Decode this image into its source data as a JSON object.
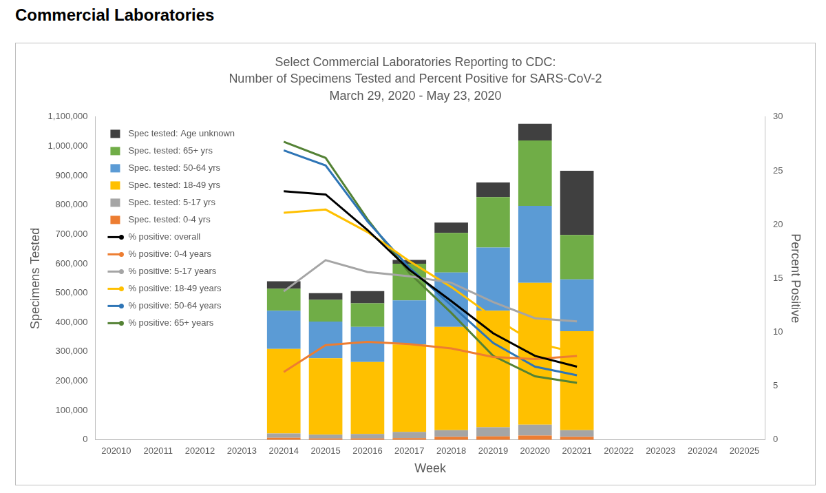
{
  "heading": "Commercial Laboratories",
  "chart_data": {
    "type": "bar",
    "title": [
      "Select Commercial Laboratories Reporting to CDC:",
      "Number of Specimens Tested and Percent Positive for SARS-CoV-2",
      "March 29, 2020 - May 23, 2020"
    ],
    "x_label": "Week",
    "y_label": "Specimens Tested",
    "y2_label": "Percent Positive",
    "categories": [
      "202010",
      "202011",
      "202012",
      "202013",
      "202014",
      "202015",
      "202016",
      "202017",
      "202018",
      "202019",
      "202020",
      "202021",
      "202022",
      "202023",
      "202024",
      "202025"
    ],
    "ylim": [
      0,
      1100000
    ],
    "yticks": [
      0,
      {
        "value": 100000,
        "label": "100,000"
      },
      {
        "value": 200000,
        "label": "200,000"
      },
      {
        "value": 300000,
        "label": "300,000"
      },
      {
        "value": 400000,
        "label": "400,000"
      },
      {
        "value": 500000,
        "label": "500,000"
      },
      {
        "value": 600000,
        "label": "600,000"
      },
      {
        "value": 700000,
        "label": "700,000"
      },
      {
        "value": 800000,
        "label": "800,000"
      },
      {
        "value": 900000,
        "label": "900,000"
      },
      {
        "value": 1000000,
        "label": "1,000,000"
      },
      {
        "value": 1100000,
        "label": "1,100,000"
      }
    ],
    "y2lim": [
      0,
      30
    ],
    "y2ticks": [
      0,
      5,
      10,
      15,
      20,
      25,
      30
    ],
    "stacked": true,
    "grid": false,
    "legend": "upper left",
    "series": [
      {
        "name": "Spec. tested: 0-4 yrs",
        "type": "bar",
        "color": "#ed7d31",
        "values": [
          null,
          null,
          null,
          null,
          7000,
          5000,
          5000,
          6000,
          10000,
          12000,
          15000,
          10000,
          null,
          null,
          null,
          null
        ]
      },
      {
        "name": "Spec. tested: 5-17 yrs",
        "type": "bar",
        "color": "#a5a5a5",
        "values": [
          null,
          null,
          null,
          null,
          15000,
          13000,
          15000,
          21000,
          23000,
          31000,
          37000,
          23000,
          null,
          null,
          null,
          null
        ]
      },
      {
        "name": "Spec. tested: 18-49 yrs",
        "type": "bar",
        "color": "#ffc000",
        "values": [
          null,
          null,
          null,
          null,
          288000,
          260000,
          245000,
          298000,
          352000,
          397000,
          483000,
          337000,
          null,
          null,
          null,
          null
        ]
      },
      {
        "name": "Spec. tested: 50-64 yrs",
        "type": "bar",
        "color": "#5b9bd5",
        "values": [
          null,
          null,
          null,
          null,
          130000,
          125000,
          120000,
          150000,
          185000,
          215000,
          262000,
          177000,
          null,
          null,
          null,
          null
        ]
      },
      {
        "name": "Spec. tested: 65+ yrs",
        "type": "bar",
        "color": "#70ad47",
        "values": [
          null,
          null,
          null,
          null,
          75000,
          74000,
          80000,
          125000,
          135000,
          172000,
          223000,
          151000,
          null,
          null,
          null,
          null
        ]
      },
      {
        "name": "Spec tested: Age unknown",
        "type": "bar",
        "color": "#404040",
        "values": [
          null,
          null,
          null,
          null,
          25000,
          23000,
          42000,
          13000,
          35000,
          50000,
          57000,
          219000,
          null,
          null,
          null,
          null
        ]
      },
      {
        "name": "% positive: overall",
        "type": "line",
        "axis": "y2",
        "color": "#000000",
        "values": [
          null,
          null,
          null,
          null,
          23.1,
          22.8,
          19.5,
          15.8,
          12.9,
          9.9,
          7.8,
          6.8,
          null,
          null,
          null,
          null
        ]
      },
      {
        "name": "% positive: 0-4 years",
        "type": "line",
        "axis": "y2",
        "color": "#ed7d31",
        "values": [
          null,
          null,
          null,
          null,
          6.3,
          8.8,
          9.1,
          8.9,
          8.5,
          7.7,
          7.5,
          7.8,
          null,
          null,
          null,
          null
        ]
      },
      {
        "name": "% positive: 5-17 years",
        "type": "line",
        "axis": "y2",
        "color": "#a5a5a5",
        "values": [
          null,
          null,
          null,
          null,
          13.8,
          16.7,
          15.6,
          15.2,
          14.6,
          12.8,
          11.3,
          11.0,
          null,
          null,
          null,
          null
        ]
      },
      {
        "name": "% positive: 18-49 years",
        "type": "line",
        "axis": "y2",
        "color": "#ffc000",
        "values": [
          null,
          null,
          null,
          null,
          21.1,
          21.4,
          19.3,
          16.6,
          14.2,
          11.4,
          9.0,
          8.1,
          null,
          null,
          null,
          null
        ]
      },
      {
        "name": "% positive: 50-64 years",
        "type": "line",
        "axis": "y2",
        "color": "#2e75b6",
        "values": [
          null,
          null,
          null,
          null,
          26.9,
          25.5,
          20.3,
          16.0,
          12.5,
          9.0,
          6.8,
          6.0,
          null,
          null,
          null,
          null
        ]
      },
      {
        "name": "% positive: 65+ years",
        "type": "line",
        "axis": "y2",
        "color": "#548235",
        "values": [
          null,
          null,
          null,
          null,
          27.7,
          26.2,
          20.5,
          15.5,
          11.8,
          7.8,
          5.9,
          5.3,
          null,
          null,
          null,
          null
        ]
      }
    ]
  }
}
